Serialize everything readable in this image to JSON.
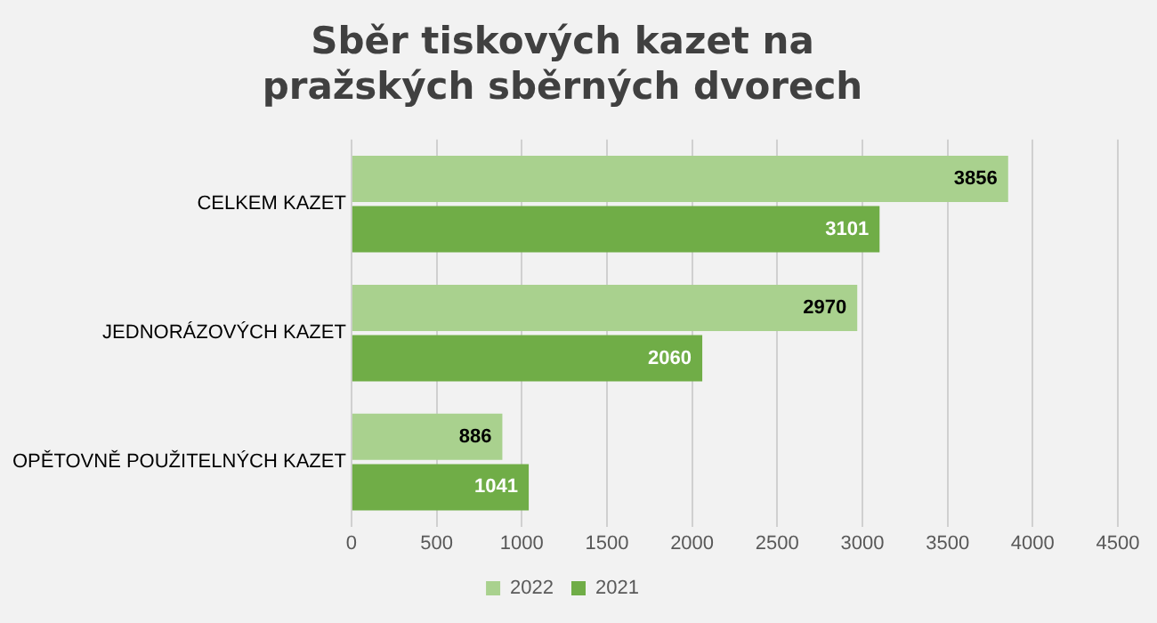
{
  "chart_data": {
    "type": "bar",
    "orientation": "horizontal",
    "title": "Sběr tiskových kazet na pražských sběrných dvorech",
    "categories": [
      "CELKEM KAZET",
      "JEDNORÁZOVÝCH KAZET",
      "OPĚTOVNĚ POUŽITELNÝCH KAZET"
    ],
    "series": [
      {
        "name": "2022",
        "color": "#a9d18e",
        "values": [
          3856,
          2970,
          886
        ]
      },
      {
        "name": "2021",
        "color": "#70ad47",
        "values": [
          3101,
          2060,
          1041
        ]
      }
    ],
    "xlim": [
      0,
      4500
    ],
    "xticks": [
      0,
      500,
      1000,
      1500,
      2000,
      2500,
      3000,
      3500,
      4000,
      4500
    ],
    "grid": "x",
    "legend": "bottom",
    "data_labels": true
  }
}
